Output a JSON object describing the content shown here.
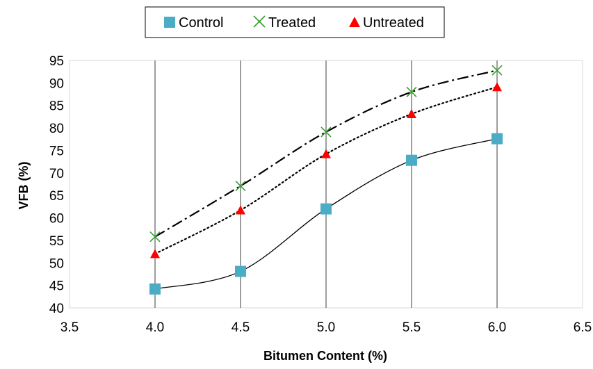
{
  "chart_data": {
    "type": "scatter",
    "title": "",
    "xlabel": "Bitumen Content (%)",
    "ylabel": "VFB (%)",
    "xlim": [
      3.5,
      6.5
    ],
    "ylim": [
      40,
      95
    ],
    "x_ticks": [
      "3.5",
      "4.0",
      "4.5",
      "5.0",
      "5.5",
      "6.0",
      "6.5"
    ],
    "y_ticks": [
      "40",
      "45",
      "50",
      "55",
      "60",
      "65",
      "70",
      "75",
      "80",
      "85",
      "90",
      "95"
    ],
    "grid": "vertical lines at data x values",
    "legend_position": "top",
    "series": [
      {
        "name": "Control",
        "marker": "square",
        "color": "#4bacc6",
        "line_style": "solid",
        "x": [
          4.0,
          4.5,
          5.0,
          5.5,
          6.0
        ],
        "y": [
          44.2,
          48.1,
          62.0,
          72.8,
          77.6
        ]
      },
      {
        "name": "Treated",
        "marker": "x",
        "color": "#33a02c",
        "line_style": "long-dash-dot",
        "x": [
          4.0,
          4.5,
          5.0,
          5.5,
          6.0
        ],
        "y": [
          55.8,
          67.1,
          79.1,
          88.0,
          92.8
        ]
      },
      {
        "name": "Untreated",
        "marker": "triangle",
        "color": "#ff0000",
        "line_style": "dotted",
        "x": [
          4.0,
          4.5,
          5.0,
          5.5,
          6.0
        ],
        "y": [
          52.0,
          61.7,
          74.2,
          83.1,
          89.1
        ]
      }
    ]
  }
}
